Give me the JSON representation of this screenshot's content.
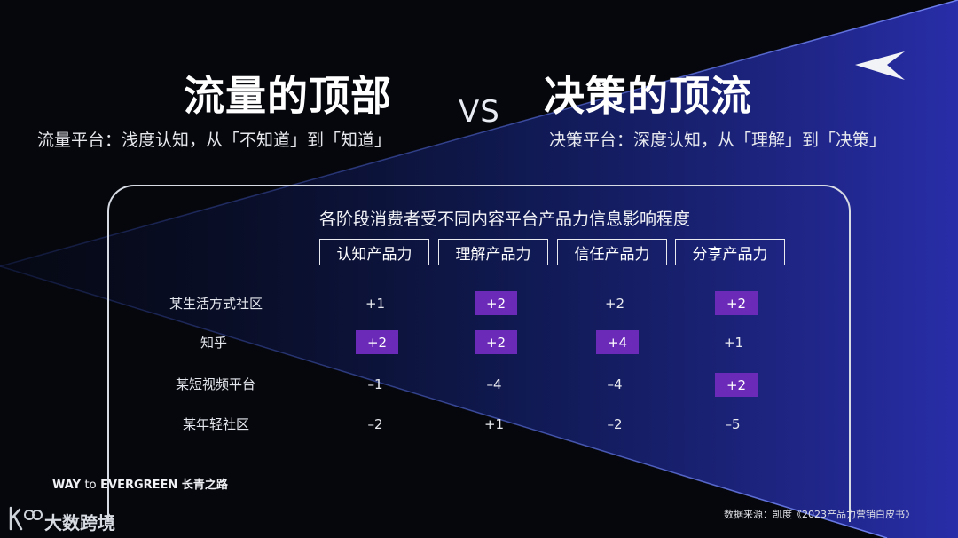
{
  "header": {
    "left_title": "流量的顶部",
    "left_subtitle": "流量平台：浅度认知，从「不知道」到「知道」",
    "vs": "VS",
    "right_title": "决策的顶流",
    "right_subtitle": "决策平台：深度认知，从「理解」到「决策」"
  },
  "chart_data": {
    "type": "table",
    "title": "各阶段消费者受不同内容平台产品力信息影响程度",
    "columns": [
      "认知产品力",
      "理解产品力",
      "信任产品力",
      "分享产品力"
    ],
    "rows": [
      {
        "label": "某生活方式社区",
        "values": [
          "+1",
          "+2",
          "+2",
          "+2"
        ],
        "highlight": [
          false,
          true,
          false,
          true
        ]
      },
      {
        "label": "知乎",
        "values": [
          "+2",
          "+2",
          "+4",
          "+1"
        ],
        "highlight": [
          true,
          true,
          true,
          false
        ]
      },
      {
        "label": "某短视频平台",
        "values": [
          "–1",
          "–4",
          "–4",
          "+2"
        ],
        "highlight": [
          false,
          false,
          false,
          true
        ]
      },
      {
        "label": "某年轻社区",
        "values": [
          "–2",
          "+1",
          "–2",
          "–5"
        ],
        "highlight": [
          false,
          false,
          false,
          false
        ]
      }
    ],
    "highlight_color": "#6b2bb8"
  },
  "footer": {
    "brand_main": "WAY",
    "brand_to": "to",
    "brand_evergreen": "EVERGREEN",
    "brand_cn": "长青之路",
    "logo_text": "大数跨境",
    "source": "数据来源：凯度《2023产品力营销白皮书》"
  },
  "icons": {
    "top_right": "arrowhead-logo-icon",
    "bottom_left": "k100-logo-icon"
  }
}
